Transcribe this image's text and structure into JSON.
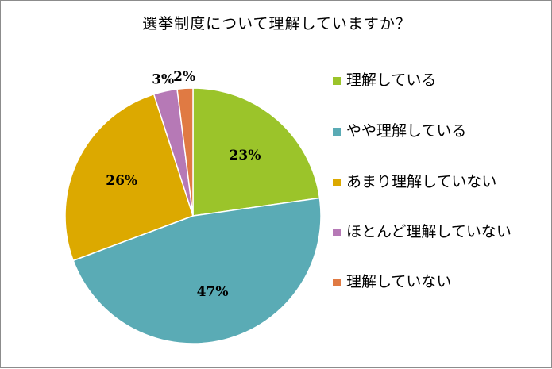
{
  "chart_data": {
    "type": "pie",
    "title": "選挙制度について理解していますか？",
    "categories": [
      "理解している",
      "やや理解している",
      "あまり理解していない",
      "ほとんど理解していない",
      "理解していない"
    ],
    "values": [
      23,
      47,
      26,
      3,
      2
    ],
    "data_labels": [
      "23%",
      "47%",
      "26%",
      "3%",
      "2%"
    ],
    "colors": [
      "#9bc42a",
      "#5aabb5",
      "#dca900",
      "#b679b6",
      "#e07a43"
    ],
    "legend_position": "right"
  }
}
